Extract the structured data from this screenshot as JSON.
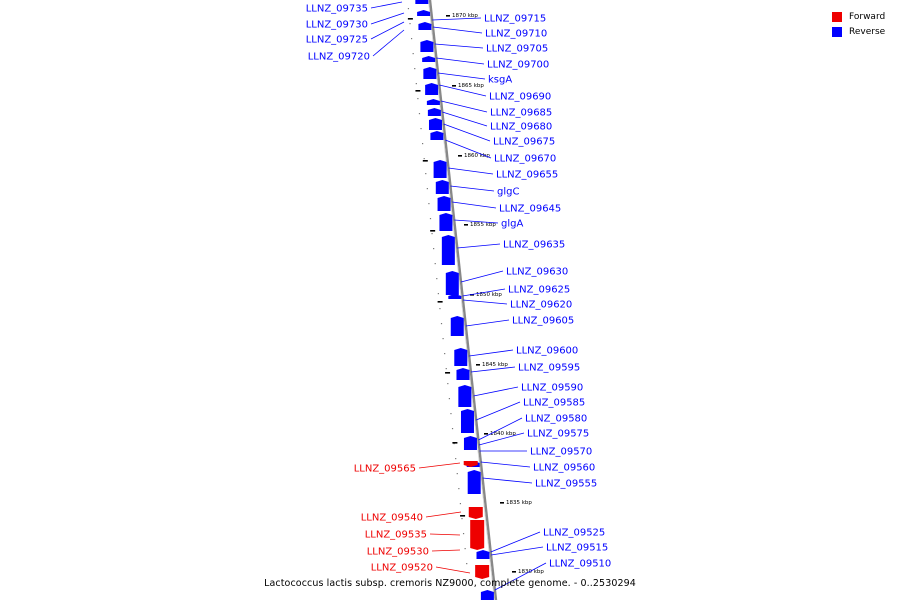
{
  "caption": "Lactococcus lactis subsp. cremoris NZ9000, complete genome. - 0..2530294",
  "legend": [
    {
      "label": "Forward",
      "color": "#ee0000"
    },
    {
      "label": "Reverse",
      "color": "#0000ff"
    }
  ],
  "colors": {
    "forward": "#ee0000",
    "reverse": "#0000ff",
    "backbone": "#888888",
    "tick": "#000000"
  },
  "ruler": [
    {
      "label": "1870 kbp"
    },
    {
      "label": "1865 kbp"
    },
    {
      "label": "1860 kbp"
    },
    {
      "label": "1855 kbp"
    },
    {
      "label": "1850 kbp"
    },
    {
      "label": "1845 kbp"
    },
    {
      "label": "1840 kbp"
    },
    {
      "label": "1835 kbp"
    },
    {
      "label": "1830 kbp"
    }
  ],
  "genes": {
    "left_forward": [
      {
        "label": "LLNZ_09565",
        "strand": "forward"
      },
      {
        "label": "LLNZ_09540",
        "strand": "forward"
      },
      {
        "label": "LLNZ_09535",
        "strand": "forward"
      },
      {
        "label": "LLNZ_09530",
        "strand": "forward"
      },
      {
        "label": "LLNZ_09520",
        "strand": "forward"
      }
    ],
    "left_reverse": [
      {
        "label": "LLNZ_09735",
        "strand": "reverse"
      },
      {
        "label": "LLNZ_09730",
        "strand": "reverse"
      },
      {
        "label": "LLNZ_09725",
        "strand": "reverse"
      },
      {
        "label": "LLNZ_09720",
        "strand": "reverse"
      }
    ],
    "right_reverse": [
      {
        "label": "LLNZ_09715",
        "strand": "reverse"
      },
      {
        "label": "LLNZ_09710",
        "strand": "reverse"
      },
      {
        "label": "LLNZ_09705",
        "strand": "reverse"
      },
      {
        "label": "LLNZ_09700",
        "strand": "reverse"
      },
      {
        "label": "ksgA",
        "strand": "reverse"
      },
      {
        "label": "LLNZ_09690",
        "strand": "reverse"
      },
      {
        "label": "LLNZ_09685",
        "strand": "reverse"
      },
      {
        "label": "LLNZ_09680",
        "strand": "reverse"
      },
      {
        "label": "LLNZ_09675",
        "strand": "reverse"
      },
      {
        "label": "LLNZ_09670",
        "strand": "reverse"
      },
      {
        "label": "LLNZ_09655",
        "strand": "reverse"
      },
      {
        "label": "glgC",
        "strand": "reverse"
      },
      {
        "label": "LLNZ_09645",
        "strand": "reverse"
      },
      {
        "label": "glgA",
        "strand": "reverse"
      },
      {
        "label": "LLNZ_09635",
        "strand": "reverse"
      },
      {
        "label": "LLNZ_09630",
        "strand": "reverse"
      },
      {
        "label": "LLNZ_09625",
        "strand": "reverse"
      },
      {
        "label": "LLNZ_09620",
        "strand": "reverse"
      },
      {
        "label": "LLNZ_09605",
        "strand": "reverse"
      },
      {
        "label": "LLNZ_09600",
        "strand": "reverse"
      },
      {
        "label": "LLNZ_09595",
        "strand": "reverse"
      },
      {
        "label": "LLNZ_09590",
        "strand": "reverse"
      },
      {
        "label": "LLNZ_09585",
        "strand": "reverse"
      },
      {
        "label": "LLNZ_09580",
        "strand": "reverse"
      },
      {
        "label": "LLNZ_09575",
        "strand": "reverse"
      },
      {
        "label": "LLNZ_09570",
        "strand": "reverse"
      },
      {
        "label": "LLNZ_09560",
        "strand": "reverse"
      },
      {
        "label": "LLNZ_09555",
        "strand": "reverse"
      },
      {
        "label": "LLNZ_09525",
        "strand": "reverse"
      },
      {
        "label": "LLNZ_09515",
        "strand": "reverse"
      },
      {
        "label": "LLNZ_09510",
        "strand": "reverse"
      }
    ]
  }
}
